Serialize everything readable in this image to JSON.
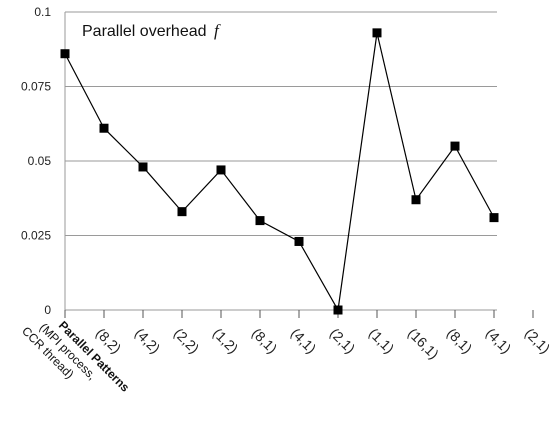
{
  "chart_data": {
    "type": "line",
    "title": "Parallel overhead",
    "title_symbol": "f",
    "xlabel": {
      "line1": "Parallel Patterns",
      "line2": "(MPI process,",
      "line3": "CCR thread)"
    },
    "ylabel": "",
    "ylim": [
      0,
      0.1
    ],
    "yticks": [
      "0",
      "0.025",
      "0.05",
      "0.075",
      "0.1"
    ],
    "ytick_values": [
      0,
      0.025,
      0.05,
      0.075,
      0.1
    ],
    "grid": true,
    "legend": "none",
    "categories": [
      "(8,2)",
      "(4,2)",
      "(2,2)",
      "(1,2)",
      "(8,1)",
      "(4,1)",
      "(2,1)",
      "(1,1)",
      "(16,1)",
      "(8,1)",
      "(4,1)",
      "(2,1)"
    ],
    "series": [
      {
        "values": [
          0.086,
          0.061,
          0.048,
          0.033,
          0.047,
          0.03,
          0.023,
          0.0,
          0.093,
          0.037,
          0.055,
          0.031
        ],
        "color": "#000000",
        "marker": "square"
      }
    ]
  }
}
